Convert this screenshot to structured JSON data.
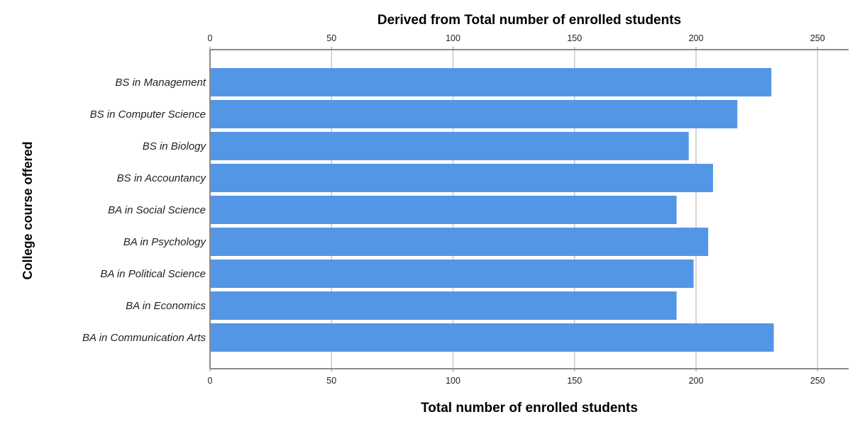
{
  "chart_data": {
    "type": "bar",
    "orientation": "horizontal",
    "title": "Derived from Total number of enrolled students",
    "xlabel": "Total number of enrolled students",
    "ylabel": "College course offered",
    "xlim": [
      0,
      265
    ],
    "xticks": [
      0,
      50,
      100,
      150,
      200,
      250
    ],
    "grid": true,
    "categories": [
      "BS in Management",
      "BS in Computer Science",
      "BS in Biology",
      "BS in Accountancy",
      "BA in Social Science",
      "BA in Psychology",
      "BA in Political Science",
      "BA in Economics",
      "BA in Communication Arts"
    ],
    "values": [
      231,
      217,
      197,
      207,
      192,
      205,
      199,
      192,
      232
    ],
    "bar_color": "#5496e6"
  }
}
